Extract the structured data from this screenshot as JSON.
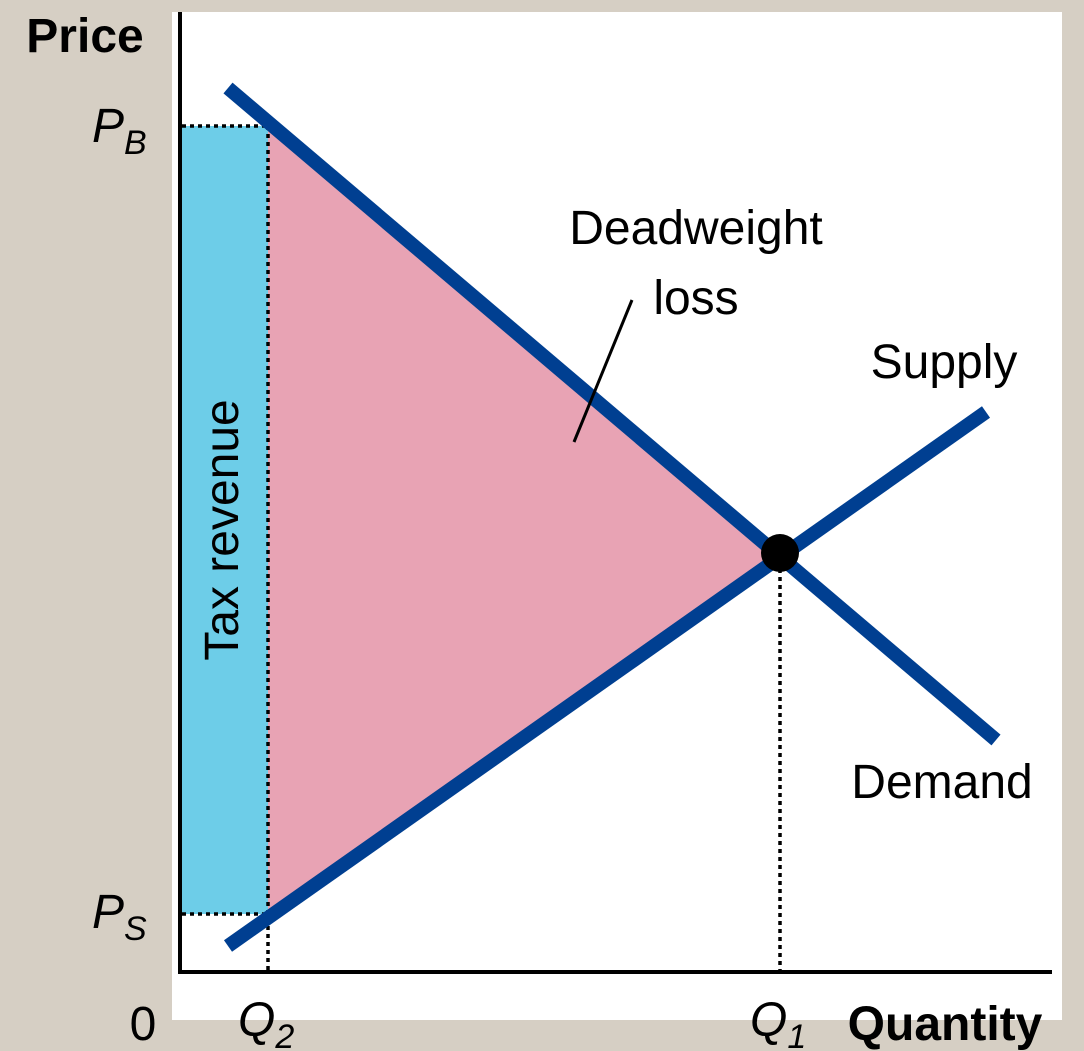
{
  "axes": {
    "y_label": "Price",
    "x_label": "Quantity",
    "origin": "0"
  },
  "price_labels": {
    "buyers": {
      "main": "P",
      "sub": "B"
    },
    "sellers": {
      "main": "P",
      "sub": "S"
    }
  },
  "quantity_labels": {
    "taxed": {
      "main": "Q",
      "sub": "2"
    },
    "equilibrium": {
      "main": "Q",
      "sub": "1"
    }
  },
  "areas": {
    "tax_revenue": "Tax revenue",
    "deadweight_loss": [
      "Deadweight",
      "loss"
    ]
  },
  "curves": {
    "supply": "Supply",
    "demand": "Demand"
  }
}
